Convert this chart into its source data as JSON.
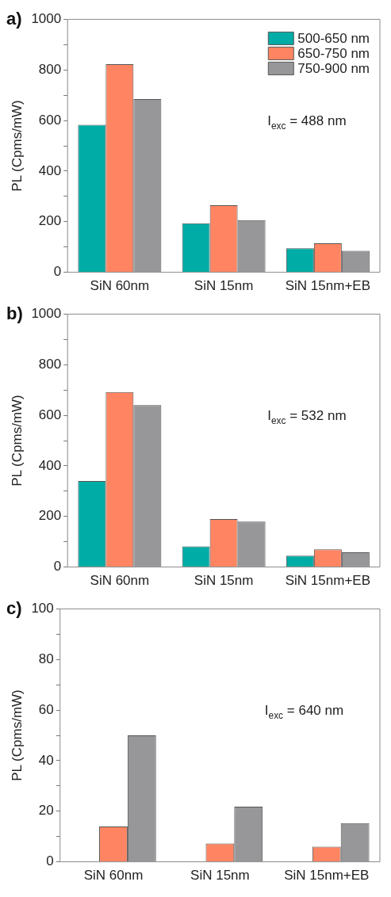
{
  "chart_data": [
    {
      "type": "bar",
      "title": "a)",
      "ylabel": "PL (Cpms/mW)",
      "categories": [
        "SiN 60nm",
        "SiN 15nm",
        "SiN 15nm+EB"
      ],
      "series": [
        {
          "name": "500-650 nm",
          "color": "#00aca6",
          "values": [
            583,
            194,
            95
          ]
        },
        {
          "name": "650-750 nm",
          "color": "#ff8562",
          "values": [
            823,
            265,
            115
          ]
        },
        {
          "name": "750-900 nm",
          "color": "#97979a",
          "values": [
            685,
            206,
            85
          ]
        }
      ],
      "ylim": [
        0,
        1000
      ],
      "yticks": [
        0,
        {
          "value": 100,
          "label": null
        },
        200,
        {
          "value": 300,
          "label": null
        },
        400,
        {
          "value": 500,
          "label": null
        },
        600,
        {
          "value": 700,
          "label": null
        },
        800,
        {
          "value": 900,
          "label": null
        },
        1000
      ],
      "legend": "top right",
      "grid": false,
      "annotations": [
        "I$_{exc}$ = 488 nm"
      ]
    },
    {
      "type": "bar",
      "title": "b)",
      "ylabel": "PL (Cpms/mW)",
      "categories": [
        "SiN 60nm",
        "SiN 15nm",
        "SiN 15nm+EB"
      ],
      "series": [
        {
          "color": "#00aca6",
          "values": [
            340,
            82,
            45
          ]
        },
        {
          "color": "#ff8562",
          "values": [
            692,
            190,
            70
          ]
        },
        {
          "color": "#97979a",
          "values": [
            640,
            180,
            58
          ]
        }
      ],
      "ylim": [
        0,
        1000
      ],
      "yticks": [
        0,
        {
          "value": 100,
          "label": null
        },
        200,
        {
          "value": 300,
          "label": null
        },
        400,
        {
          "value": 500,
          "label": null
        },
        600,
        {
          "value": 700,
          "label": null
        },
        800,
        {
          "value": 900,
          "label": null
        },
        1000
      ],
      "grid": false,
      "annotations": [
        "I$_{exc}$ = 532 nm"
      ]
    },
    {
      "type": "bar",
      "title": "c)",
      "ylabel": "PL (Cpms/mW)",
      "categories": [
        "SiN 60nm",
        "SiN 15nm",
        "SiN 15nm+EB"
      ],
      "series": [
        {
          "color": "#00aca6",
          "values": [
            null,
            null,
            null
          ]
        },
        {
          "color": "#ff8562",
          "values": [
            14,
            7.2,
            6
          ]
        },
        {
          "color": "#97979a",
          "values": [
            50,
            21.8,
            15.3
          ]
        }
      ],
      "ylim": [
        0,
        100
      ],
      "yticks": [
        0,
        {
          "value": 10,
          "label": null
        },
        20,
        {
          "value": 30,
          "label": null
        },
        40,
        {
          "value": 50,
          "label": null
        },
        60,
        {
          "value": 70,
          "label": null
        },
        80,
        {
          "value": 90,
          "label": null
        },
        100
      ],
      "grid": false,
      "annotations": [
        "I$_{exc}$ = 640 nm"
      ]
    }
  ]
}
